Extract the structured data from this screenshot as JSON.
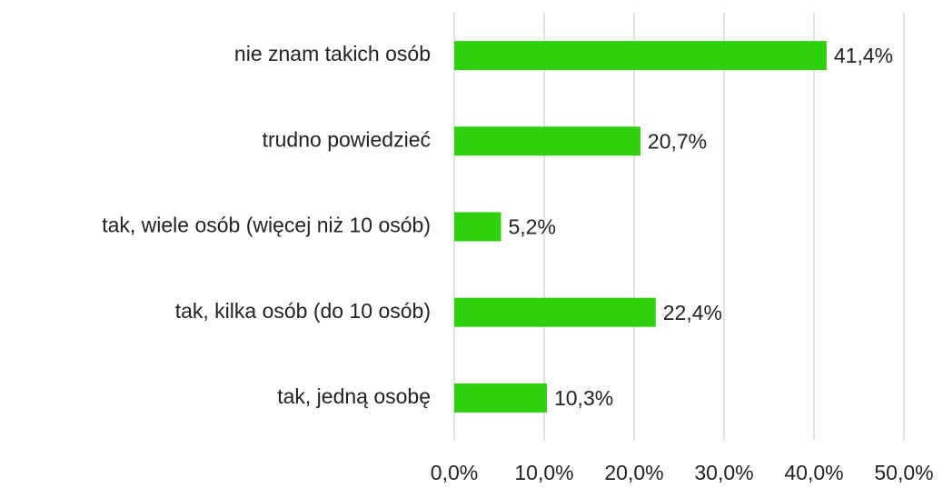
{
  "chart_data": {
    "type": "bar",
    "orientation": "horizontal",
    "categories": [
      "nie znam takich osób",
      "trudno powiedzieć",
      "tak, wiele osób (więcej niż 10 osób)",
      "tak, kilka osób (do 10 osób)",
      "tak, jedną osobę"
    ],
    "values": [
      41.4,
      20.7,
      5.2,
      22.4,
      10.3
    ],
    "value_labels": [
      "41,4%",
      "20,7%",
      "5,2%",
      "22,4%",
      "10,3%"
    ],
    "color": "#2fd10f",
    "xlim": [
      0,
      50
    ],
    "xticks": [
      {
        "value": 0,
        "label": "0,0%"
      },
      {
        "value": 10,
        "label": "10,0%"
      },
      {
        "value": 20,
        "label": "20,0%"
      },
      {
        "value": 30,
        "label": "30,0%"
      },
      {
        "value": 40,
        "label": "40,0%"
      },
      {
        "value": 50,
        "label": "50,0%"
      }
    ],
    "grid": true
  }
}
